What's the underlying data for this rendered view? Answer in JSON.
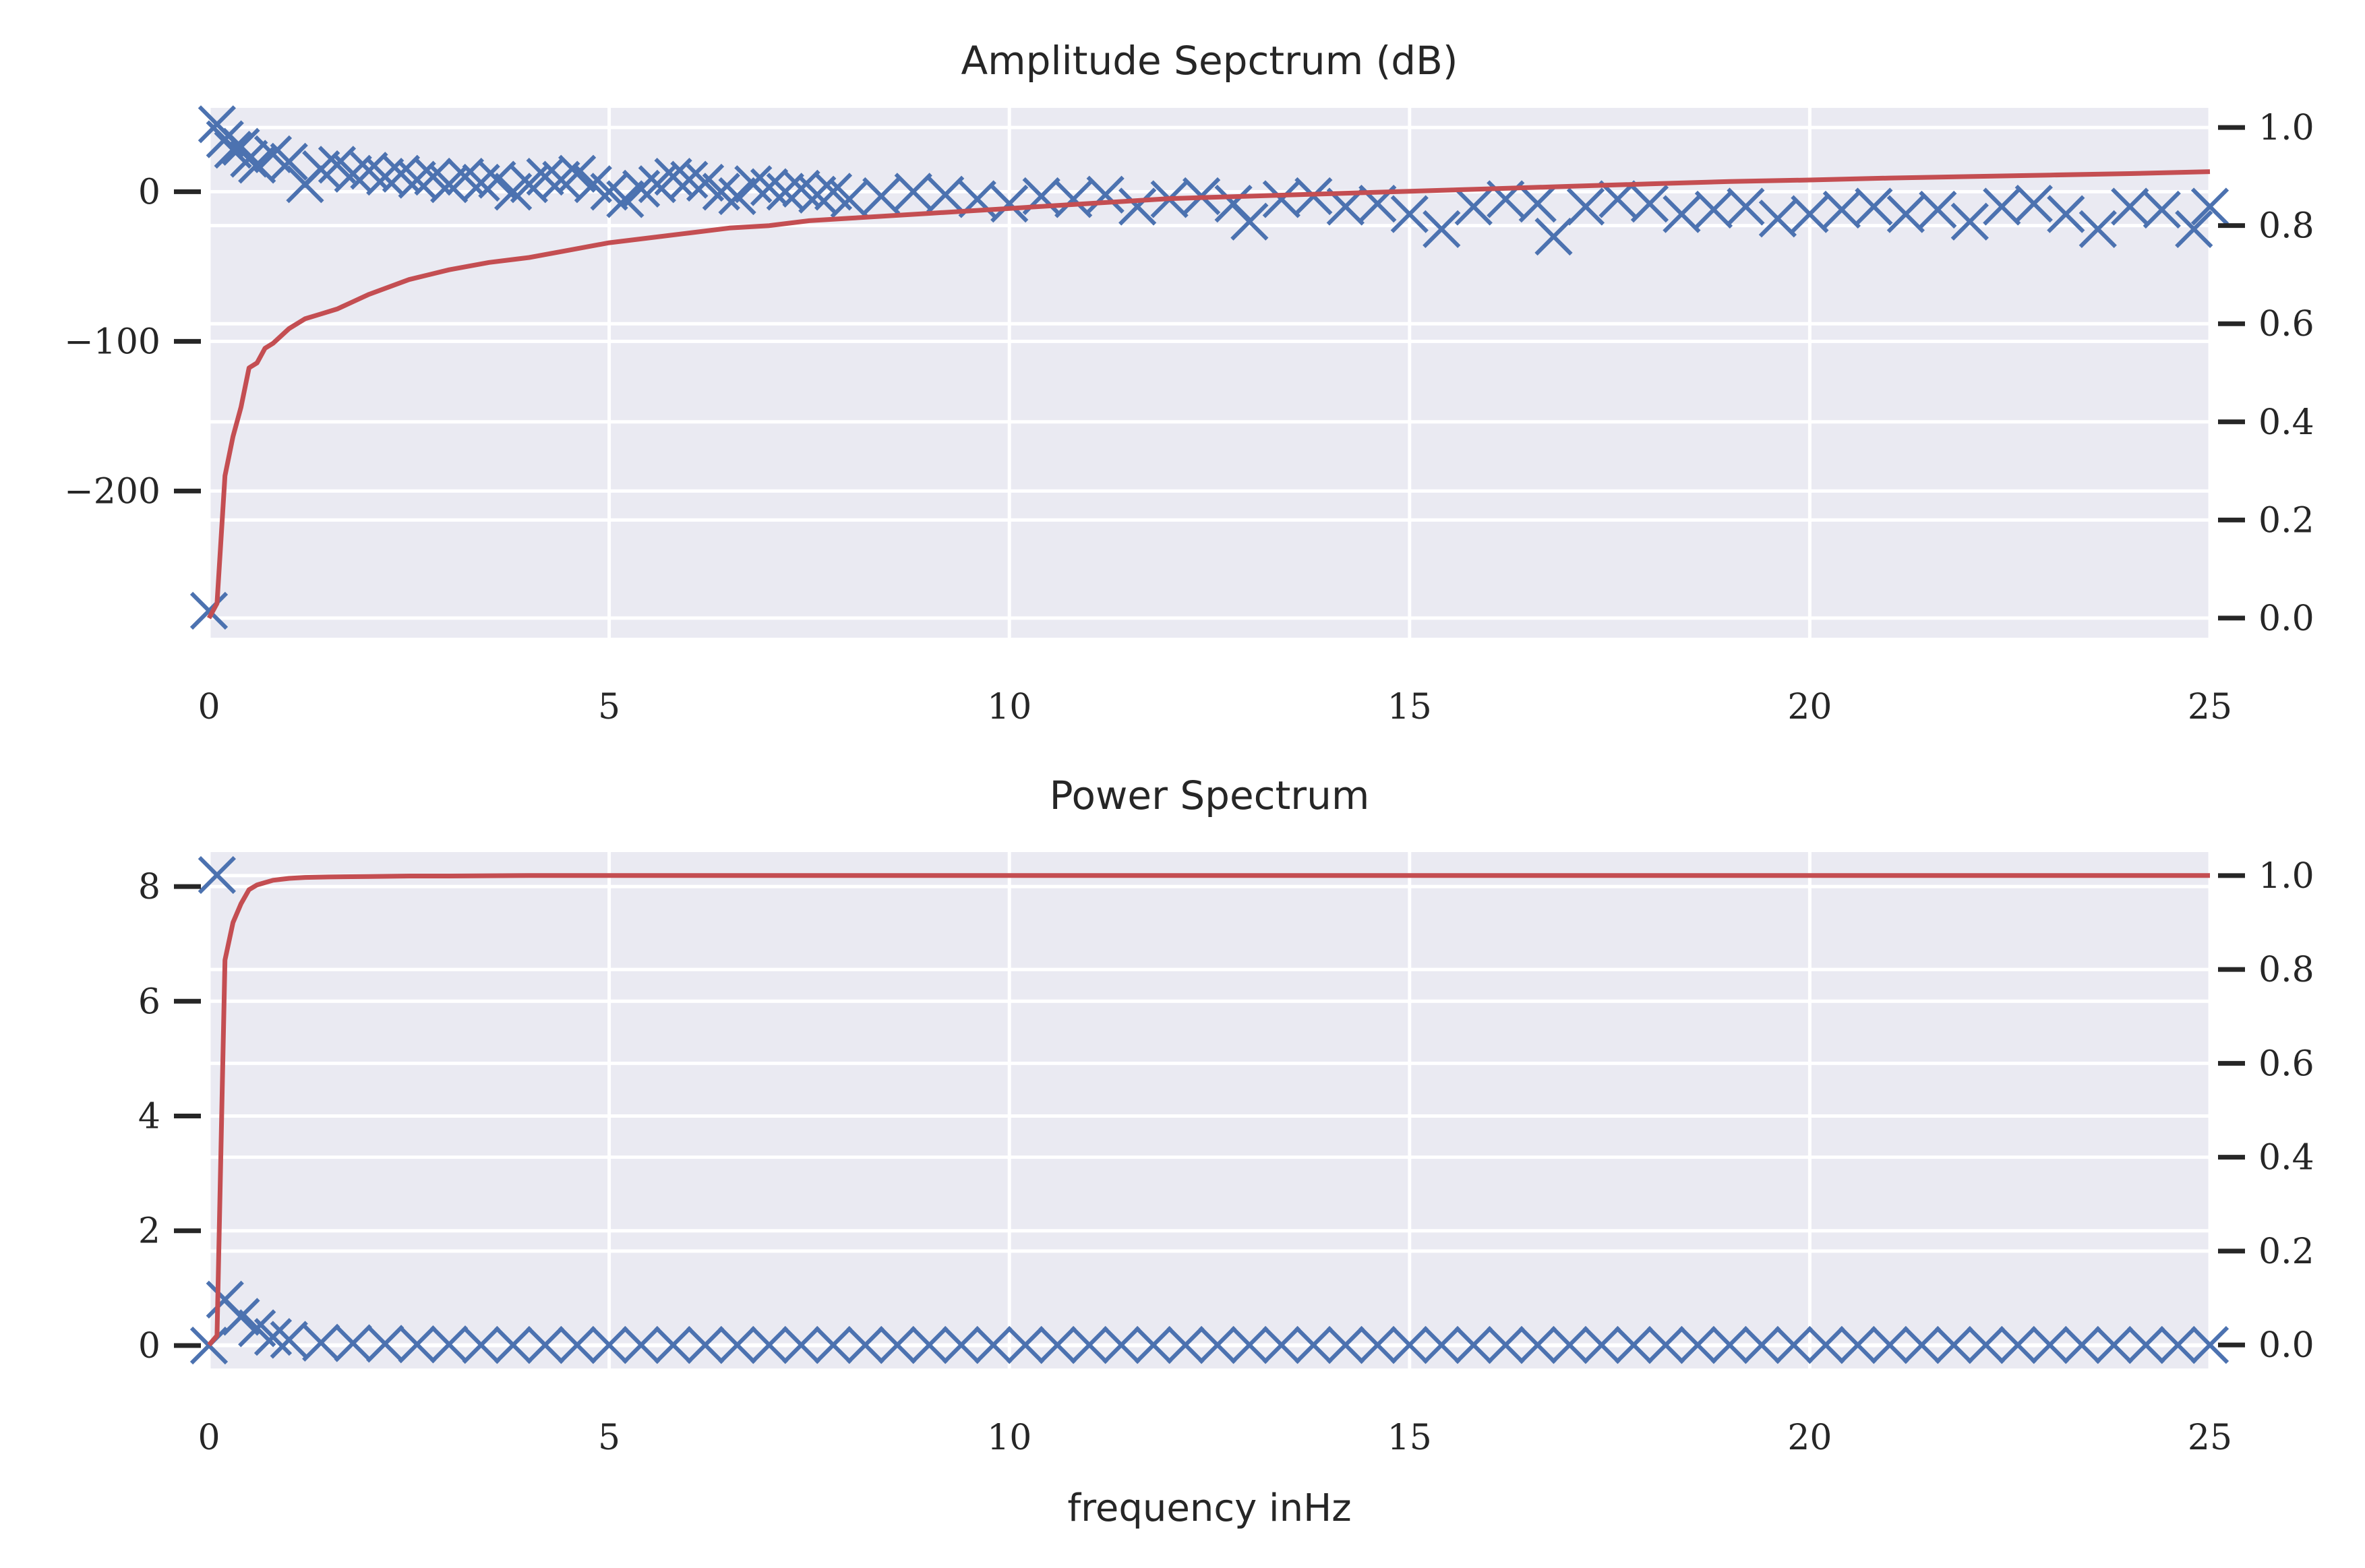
{
  "chart_data": [
    {
      "type": "scatter",
      "title": "Amplitude Sepctrum (dB)",
      "xlabel": "",
      "ylabel": "",
      "xlim": [
        0,
        25
      ],
      "ylim": [
        -298,
        56
      ],
      "y2lim": [
        -0.04,
        1.04
      ],
      "grid": true,
      "x_ticks": [
        0,
        5,
        10,
        15,
        20,
        25
      ],
      "x_tick_labels": [
        "0",
        "5",
        "10",
        "15",
        "20",
        "25"
      ],
      "y_ticks": [
        0,
        -100,
        -200
      ],
      "y_tick_labels": [
        "0",
        "−100",
        "−200"
      ],
      "y2_ticks": [
        0.0,
        0.2,
        0.4,
        0.6,
        0.8,
        1.0
      ],
      "y2_tick_labels": [
        "0.0",
        "0.2",
        "0.4",
        "0.6",
        "0.8",
        "1.0"
      ],
      "series": [
        {
          "marker": "x",
          "color": "#4c72b0",
          "axis": "left",
          "x": [
            0.0,
            0.1,
            0.2,
            0.3,
            0.4,
            0.5,
            0.6,
            0.8,
            1.0,
            1.2,
            1.4,
            1.6,
            1.8,
            2.0,
            2.2,
            2.4,
            2.6,
            2.8,
            3.0,
            3.2,
            3.4,
            3.6,
            3.8,
            4.0,
            4.2,
            4.4,
            4.6,
            4.8,
            5.0,
            5.2,
            5.4,
            5.6,
            5.8,
            6.0,
            6.2,
            6.4,
            6.6,
            6.8,
            7.0,
            7.2,
            7.4,
            7.6,
            7.8,
            8.0,
            8.4,
            8.8,
            9.2,
            9.6,
            10.0,
            10.4,
            10.8,
            11.2,
            11.6,
            12.0,
            12.4,
            12.8,
            13.0,
            13.4,
            13.8,
            14.2,
            14.6,
            15.0,
            15.4,
            15.8,
            16.2,
            16.6,
            16.8,
            17.2,
            17.6,
            18.0,
            18.4,
            18.8,
            19.2,
            19.6,
            20.0,
            20.4,
            20.8,
            21.2,
            21.6,
            22.0,
            22.4,
            22.8,
            23.2,
            23.6,
            24.0,
            24.4,
            24.8,
            25.0
          ],
          "y": [
            -280,
            45,
            35,
            28,
            30,
            22,
            18,
            25,
            20,
            5,
            15,
            18,
            12,
            14,
            10,
            12,
            8,
            10,
            5,
            10,
            6,
            8,
            0,
            5,
            10,
            8,
            12,
            5,
            0,
            -5,
            2,
            5,
            10,
            8,
            6,
            0,
            -3,
            5,
            3,
            0,
            2,
            -2,
            0,
            -5,
            -3,
            0,
            -2,
            -5,
            -8,
            -3,
            -5,
            -2,
            -10,
            -5,
            -3,
            -8,
            -20,
            -5,
            -3,
            -10,
            -8,
            -15,
            -25,
            -10,
            -5,
            -8,
            -30,
            -10,
            -5,
            -8,
            -15,
            -12,
            -10,
            -18,
            -15,
            -12,
            -10,
            -15,
            -12,
            -20,
            -10,
            -8,
            -15,
            -25,
            -10,
            -12,
            -25,
            -10
          ]
        },
        {
          "marker": "line",
          "color": "#c44e52",
          "axis": "right",
          "x": [
            0.0,
            0.1,
            0.2,
            0.3,
            0.4,
            0.5,
            0.6,
            0.7,
            0.8,
            1.0,
            1.2,
            1.4,
            1.6,
            1.8,
            2.0,
            2.5,
            3.0,
            3.5,
            4.0,
            4.5,
            5.0,
            5.5,
            6.0,
            6.5,
            7.0,
            7.5,
            8.0,
            9.0,
            10.0,
            11.0,
            12.0,
            13.0,
            14.0,
            15.0,
            16.0,
            17.0,
            18.0,
            19.0,
            20.0,
            21.0,
            22.0,
            23.0,
            24.0,
            25.0
          ],
          "y": [
            0.0,
            0.03,
            0.29,
            0.37,
            0.43,
            0.51,
            0.52,
            0.55,
            0.56,
            0.59,
            0.61,
            0.62,
            0.63,
            0.645,
            0.66,
            0.69,
            0.71,
            0.725,
            0.735,
            0.75,
            0.765,
            0.775,
            0.785,
            0.795,
            0.8,
            0.81,
            0.815,
            0.825,
            0.835,
            0.845,
            0.855,
            0.86,
            0.865,
            0.87,
            0.875,
            0.88,
            0.885,
            0.89,
            0.893,
            0.897,
            0.9,
            0.903,
            0.906,
            0.91
          ]
        }
      ]
    },
    {
      "type": "scatter",
      "title": "Power Spectrum",
      "xlabel": "frequency inHz",
      "ylabel": "",
      "xlim": [
        0,
        25
      ],
      "ylim": [
        -0.4,
        8.6
      ],
      "y2lim": [
        -0.05,
        1.05
      ],
      "grid": true,
      "x_ticks": [
        0,
        5,
        10,
        15,
        20,
        25
      ],
      "x_tick_labels": [
        "0",
        "5",
        "10",
        "15",
        "20",
        "25"
      ],
      "y_ticks": [
        0,
        2,
        4,
        6,
        8
      ],
      "y_tick_labels": [
        "0",
        "2",
        "4",
        "6",
        "8"
      ],
      "y2_ticks": [
        0.0,
        0.2,
        0.4,
        0.6,
        0.8,
        1.0
      ],
      "y2_tick_labels": [
        "0.0",
        "0.2",
        "0.4",
        "0.6",
        "0.8",
        "1.0"
      ],
      "series": [
        {
          "marker": "x",
          "color": "#4c72b0",
          "axis": "left",
          "x": [
            0.0,
            0.1,
            0.2,
            0.4,
            0.6,
            0.8,
            1.0,
            1.4,
            1.8,
            2.2,
            2.6,
            3.0,
            3.4,
            3.8,
            4.2,
            4.6,
            5.0,
            5.4,
            5.8,
            6.2,
            6.6,
            7.0,
            7.4,
            7.8,
            8.2,
            8.6,
            9.0,
            9.4,
            9.8,
            10.2,
            10.6,
            11.0,
            11.4,
            11.8,
            12.2,
            12.6,
            13.0,
            13.4,
            13.8,
            14.2,
            14.6,
            15.0,
            15.4,
            15.8,
            16.2,
            16.6,
            17.0,
            17.4,
            17.8,
            18.2,
            18.6,
            19.0,
            19.4,
            19.8,
            20.2,
            20.6,
            21.0,
            21.4,
            21.8,
            22.2,
            22.6,
            23.0,
            23.4,
            23.8,
            24.2,
            24.6,
            25.0
          ],
          "y": [
            0.0,
            8.2,
            0.8,
            0.5,
            0.3,
            0.15,
            0.1,
            0.05,
            0.04,
            0.03,
            0.02,
            0.02,
            0.01,
            0.01,
            0.01,
            0.01,
            0.01,
            0.01,
            0.01,
            0.01,
            0.01,
            0.01,
            0.01,
            0.01,
            0.01,
            0.01,
            0.01,
            0.01,
            0.01,
            0.01,
            0.01,
            0.01,
            0.01,
            0.01,
            0.01,
            0.01,
            0.01,
            0.01,
            0.01,
            0.01,
            0.01,
            0.01,
            0.01,
            0.01,
            0.01,
            0.01,
            0.01,
            0.01,
            0.01,
            0.01,
            0.01,
            0.01,
            0.01,
            0.01,
            0.01,
            0.01,
            0.01,
            0.01,
            0.01,
            0.01,
            0.01,
            0.01,
            0.01,
            0.01,
            0.01,
            0.01,
            0.01
          ]
        },
        {
          "marker": "line",
          "color": "#c44e52",
          "axis": "right",
          "x": [
            0.0,
            0.1,
            0.2,
            0.3,
            0.4,
            0.5,
            0.6,
            0.7,
            0.8,
            0.9,
            1.0,
            1.2,
            1.5,
            2.0,
            2.5,
            3.0,
            4.0,
            5.0,
            7.0,
            10.0,
            15.0,
            20.0,
            25.0
          ],
          "y": [
            0.0,
            0.02,
            0.82,
            0.9,
            0.94,
            0.97,
            0.98,
            0.985,
            0.99,
            0.992,
            0.994,
            0.996,
            0.997,
            0.998,
            0.999,
            0.999,
            1.0,
            1.0,
            1.0,
            1.0,
            1.0,
            1.0,
            1.0
          ]
        }
      ]
    }
  ]
}
